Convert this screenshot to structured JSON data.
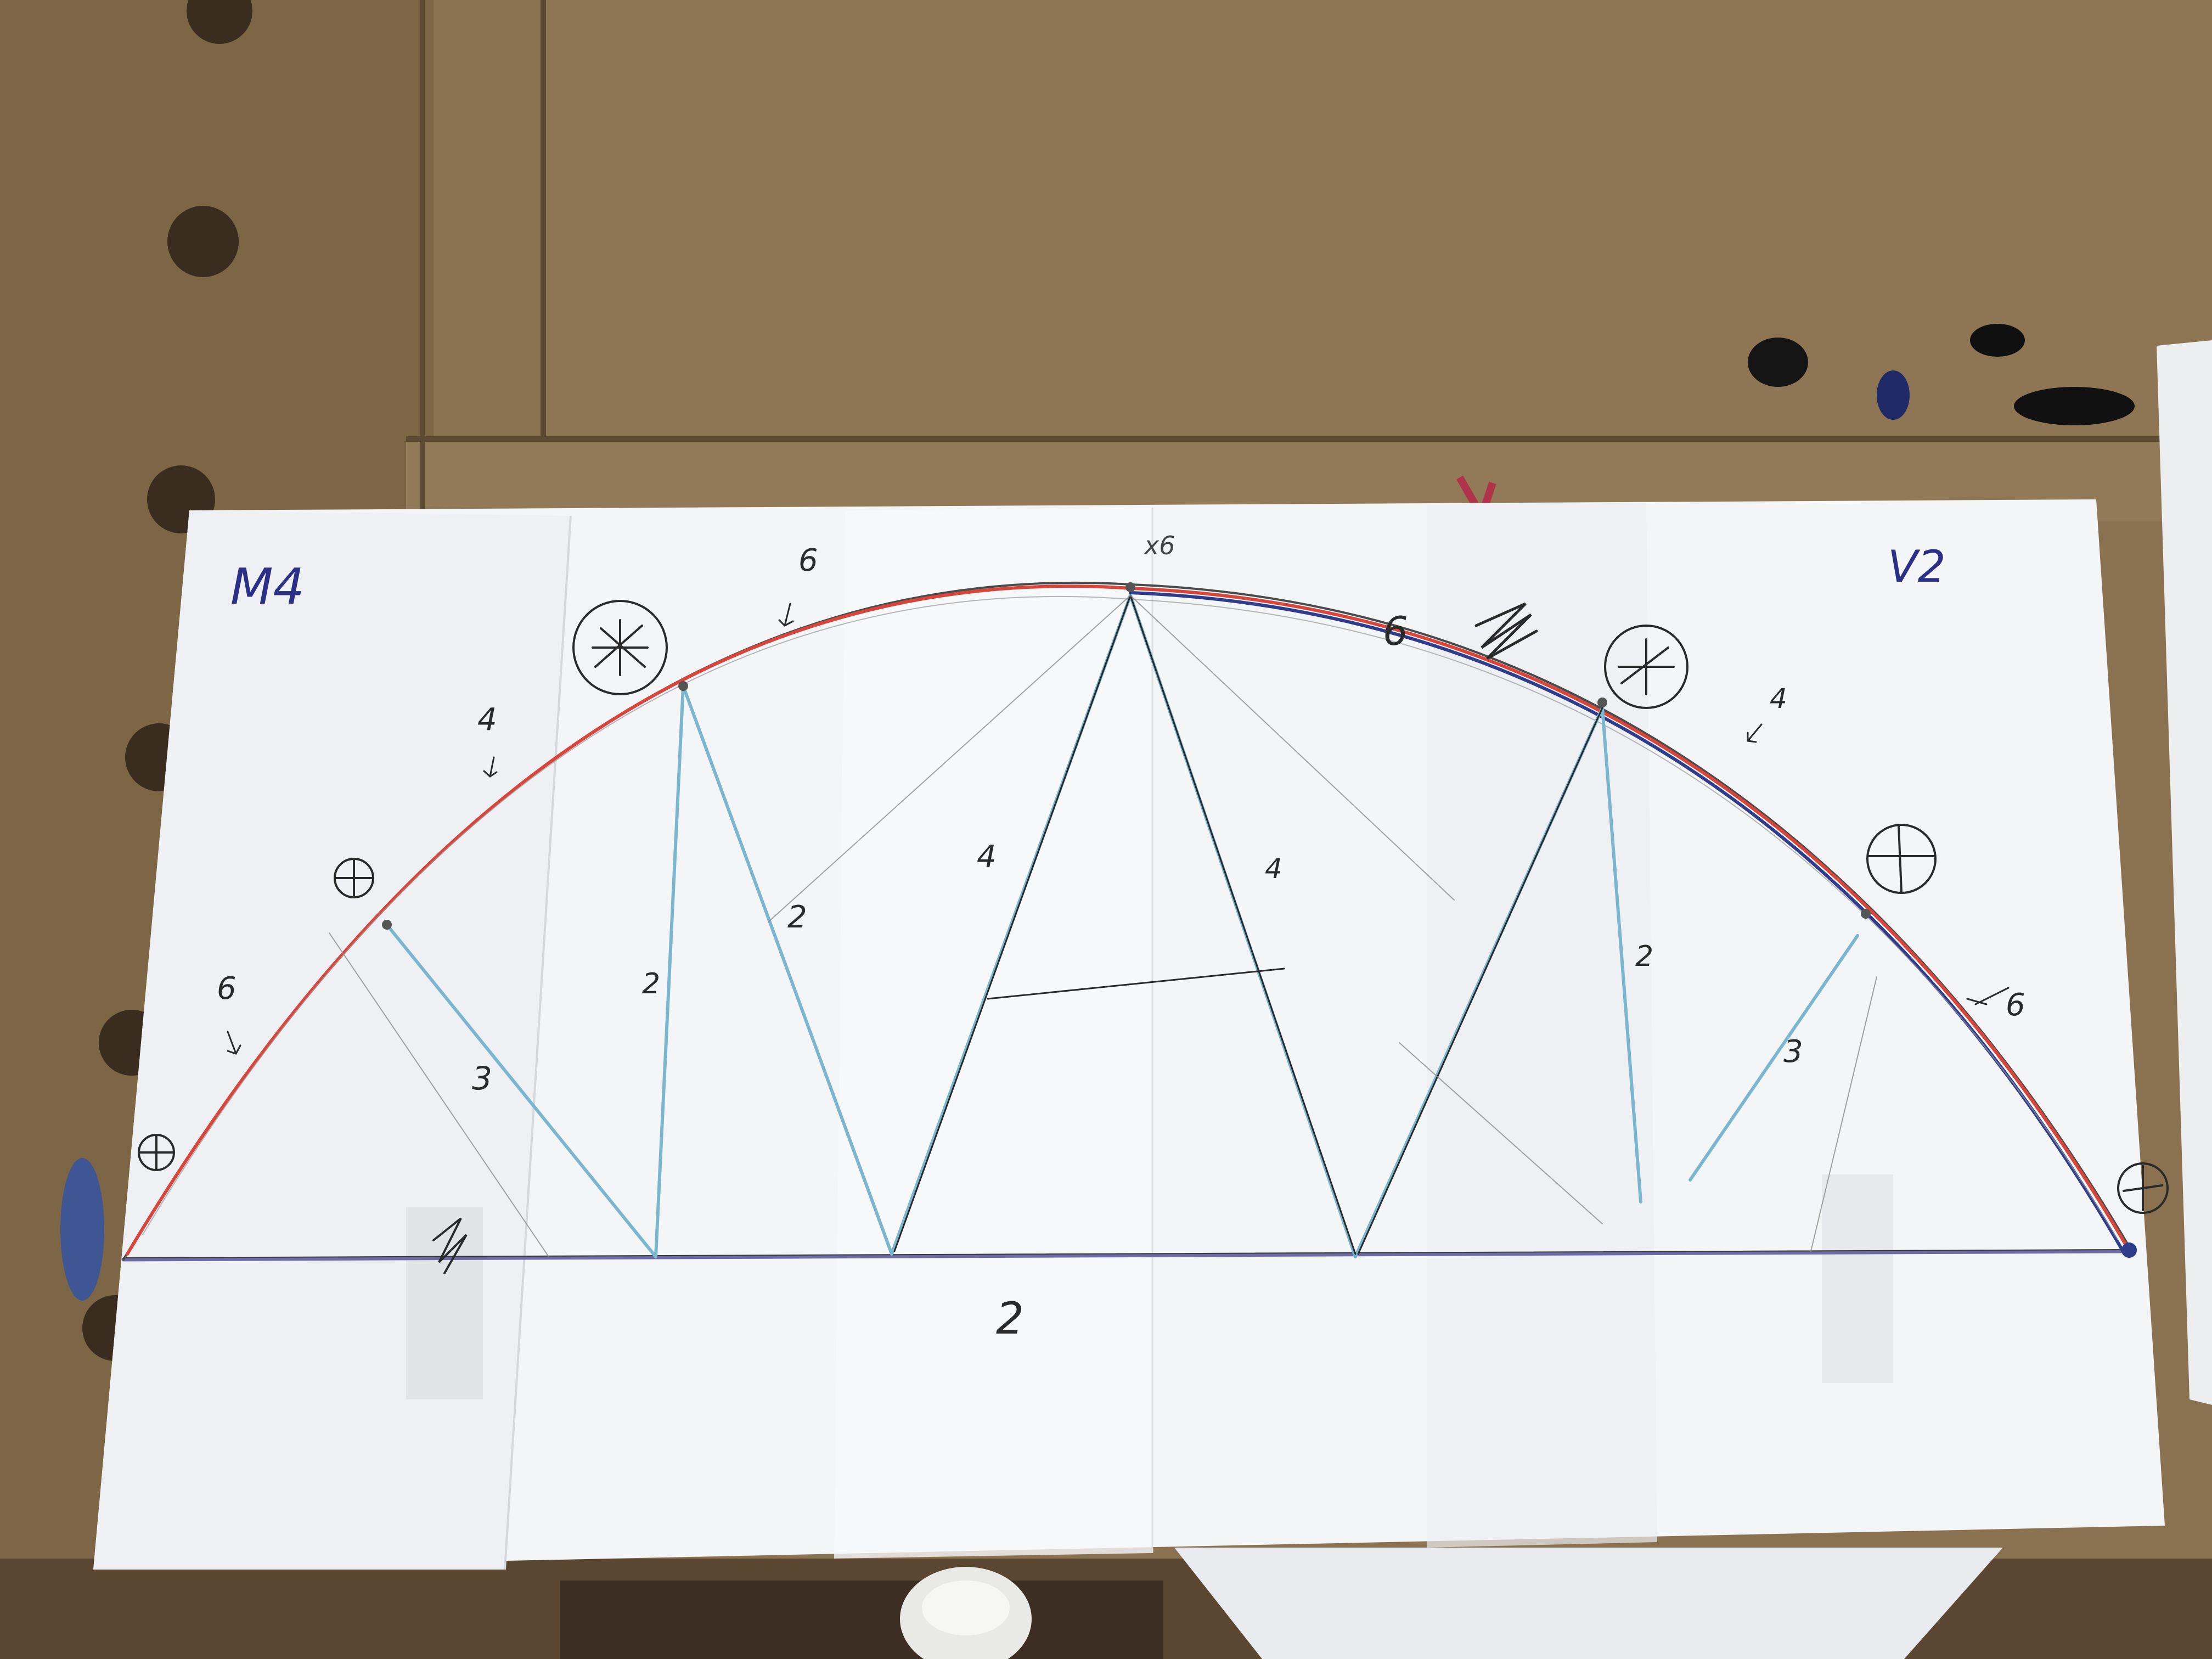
{
  "image": {
    "subject": "hand-drawn arch truss bridge plan on taped paper over a wooden workbench",
    "corner_labels": {
      "left": "M4",
      "right": "V2"
    },
    "top_label": "x6",
    "member_labels": {
      "arch_left_upper": "6",
      "arch_left_mid": "4",
      "arch_left_lower": "6",
      "arch_right_upper": "6",
      "arch_right_mid": "4",
      "arch_right_lower": "6",
      "diag_left_short": "3",
      "vertical_left": "2",
      "diag_left_long": "2",
      "diag_center_left": "4",
      "diag_center_right": "4",
      "vertical_right": "2",
      "diag_right_short": "3",
      "deck": "2"
    },
    "colors": {
      "bench": "#8a7150",
      "bench_dark": "#5e4a33",
      "paper": "#f4f5f7",
      "pencil": "#3a3a3a",
      "red_line": "#d8453a",
      "blue_line": "#2e3c8c",
      "light_blue": "#7ab6cf",
      "purple_deck": "#6e6aa8",
      "ink_label": "#2b2f86"
    }
  }
}
